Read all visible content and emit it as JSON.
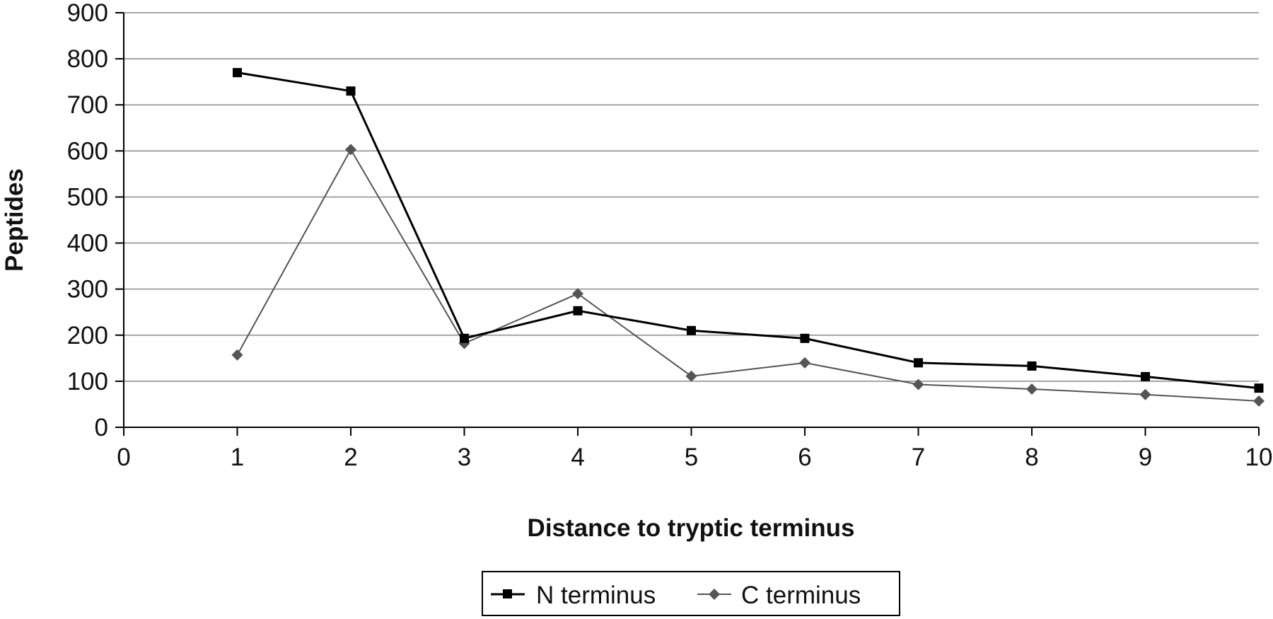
{
  "chart_data": {
    "type": "line",
    "title": "",
    "xlabel": "Distance to tryptic terminus",
    "ylabel": "Peptides",
    "xlim": [
      0,
      10
    ],
    "ylim": [
      0,
      900
    ],
    "x_ticks": [
      0,
      1,
      2,
      3,
      4,
      5,
      6,
      7,
      8,
      9,
      10
    ],
    "y_ticks": [
      0,
      100,
      200,
      300,
      400,
      500,
      600,
      700,
      800,
      900
    ],
    "grid": "horizontal",
    "legend_position": "bottom",
    "series": [
      {
        "name": "N terminus",
        "marker": "square",
        "color": "#000000",
        "x": [
          1,
          2,
          3,
          4,
          5,
          6,
          7,
          8,
          9,
          10
        ],
        "y": [
          770,
          730,
          193,
          253,
          210,
          193,
          140,
          133,
          110,
          85
        ]
      },
      {
        "name": "C terminus",
        "marker": "diamond",
        "color": "#555555",
        "x": [
          1,
          2,
          3,
          4,
          5,
          6,
          7,
          8,
          9,
          10
        ],
        "y": [
          157,
          603,
          182,
          290,
          111,
          140,
          93,
          83,
          71,
          57
        ]
      }
    ]
  }
}
